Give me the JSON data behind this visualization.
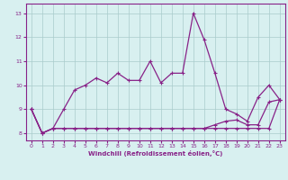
{
  "x": [
    0,
    1,
    2,
    3,
    4,
    5,
    6,
    7,
    8,
    9,
    10,
    11,
    12,
    13,
    14,
    15,
    16,
    17,
    18,
    19,
    20,
    21,
    22,
    23
  ],
  "line1": [
    9.0,
    8.0,
    8.2,
    9.0,
    9.8,
    10.0,
    10.3,
    10.1,
    10.5,
    10.2,
    10.2,
    11.0,
    10.1,
    10.5,
    10.5,
    13.0,
    11.9,
    10.5,
    9.0,
    8.8,
    8.5,
    9.5,
    10.0,
    9.4
  ],
  "line2": [
    9.0,
    8.0,
    8.2,
    8.2,
    8.2,
    8.2,
    8.2,
    8.2,
    8.2,
    8.2,
    8.2,
    8.2,
    8.2,
    8.2,
    8.2,
    8.2,
    8.2,
    8.35,
    8.5,
    8.55,
    8.35,
    8.35,
    9.3,
    9.4
  ],
  "line3": [
    9.0,
    8.0,
    8.2,
    8.2,
    8.2,
    8.2,
    8.2,
    8.2,
    8.2,
    8.2,
    8.2,
    8.2,
    8.2,
    8.2,
    8.2,
    8.2,
    8.2,
    8.2,
    8.2,
    8.2,
    8.2,
    8.2,
    8.2,
    9.4
  ],
  "line_color": "#882288",
  "bg_color": "#d8f0f0",
  "grid_color": "#aacccc",
  "xlabel": "Windchill (Refroidissement éolien,°C)",
  "ylim": [
    7.7,
    13.4
  ],
  "xlim": [
    -0.5,
    23.5
  ],
  "yticks": [
    8,
    9,
    10,
    11,
    12,
    13
  ],
  "xticks": [
    0,
    1,
    2,
    3,
    4,
    5,
    6,
    7,
    8,
    9,
    10,
    11,
    12,
    13,
    14,
    15,
    16,
    17,
    18,
    19,
    20,
    21,
    22,
    23
  ]
}
